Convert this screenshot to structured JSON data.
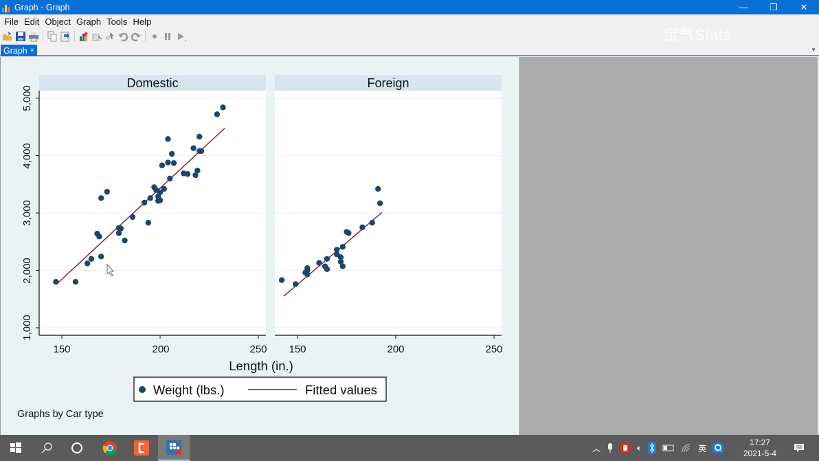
{
  "window": {
    "title": "Graph - Graph",
    "controls": {
      "minimize": "—",
      "restore": "❐",
      "close": "✕"
    }
  },
  "menu": [
    "File",
    "Edit",
    "Object",
    "Graph",
    "Tools",
    "Help"
  ],
  "toolbar": {
    "icons": [
      "open-icon",
      "save-icon",
      "print-icon",
      "copy-icon",
      "copy-to-clipboard-icon",
      "graph-editor-icon",
      "object-browser-icon",
      "pointer-icon",
      "undo-icon",
      "redo-icon",
      "record-icon",
      "pause-icon",
      "play-icon"
    ]
  },
  "watermark": "宝气Stata",
  "tabs": [
    {
      "label": "Graph",
      "close": "×"
    }
  ],
  "chart_data": {
    "type": "scatter",
    "title": "",
    "xlabel": "Length (in.)",
    "ylabel": "",
    "xlim": [
      140,
      255
    ],
    "ylim": [
      1000,
      5000
    ],
    "xticks": [
      "150",
      "200",
      "250"
    ],
    "yticks": [
      "1,000",
      "2,000",
      "3,000",
      "4,000",
      "5,000"
    ],
    "grid": true,
    "legend": {
      "position": "bottom",
      "entries": [
        "Weight (lbs.)",
        "Fitted values"
      ]
    },
    "note": "Graphs by Car type",
    "colors": {
      "dots": "#1a4670",
      "fit": "#8b1a1a",
      "strip": "#d9e5ee",
      "plot_bg": "#ffffff",
      "outer_bg": "#eaf2f3"
    },
    "panels": [
      {
        "label": "Domestic",
        "series": [
          {
            "name": "Weight (lbs.)",
            "points": [
              [
                147,
                1800
              ],
              [
                157,
                1800
              ],
              [
                163,
                2120
              ],
              [
                165,
                2200
              ],
              [
                170,
                2240
              ],
              [
                168,
                2640
              ],
              [
                169,
                2590
              ],
              [
                170,
                3260
              ],
              [
                173,
                3370
              ],
              [
                179,
                2740
              ],
              [
                180,
                2730
              ],
              [
                179,
                2650
              ],
              [
                182,
                2520
              ],
              [
                186,
                2930
              ],
              [
                194,
                2830
              ],
              [
                192,
                3180
              ],
              [
                195,
                3260
              ],
              [
                197,
                3450
              ],
              [
                198,
                3400
              ],
              [
                199,
                3290
              ],
              [
                199,
                3210
              ],
              [
                200,
                3360
              ],
              [
                200,
                3220
              ],
              [
                202,
                3420
              ],
              [
                205,
                3600
              ],
              [
                201,
                3830
              ],
              [
                204,
                3880
              ],
              [
                207,
                3870
              ],
              [
                206,
                4030
              ],
              [
                204,
                4290
              ],
              [
                212,
                3690
              ],
              [
                214,
                3680
              ],
              [
                218,
                3660
              ],
              [
                219,
                3740
              ],
              [
                217,
                4130
              ],
              [
                220,
                4080
              ],
              [
                221,
                4080
              ],
              [
                220,
                4330
              ],
              [
                229,
                4720
              ],
              [
                232,
                4840
              ]
            ]
          },
          {
            "name": "Fitted values",
            "line": [
              [
                147,
                1750
              ],
              [
                233,
                4480
              ]
            ]
          }
        ]
      },
      {
        "label": "Foreign",
        "series": [
          {
            "name": "Weight (lbs.)",
            "points": [
              [
                142,
                1830
              ],
              [
                149,
                1760
              ],
              [
                155,
                2000
              ],
              [
                155,
                2040
              ],
              [
                154,
                1960
              ],
              [
                155,
                1930
              ],
              [
                161,
                2130
              ],
              [
                164,
                2070
              ],
              [
                165,
                2020
              ],
              [
                165,
                2200
              ],
              [
                170,
                2360
              ],
              [
                170,
                2280
              ],
              [
                172,
                2230
              ],
              [
                172,
                2150
              ],
              [
                173,
                2070
              ],
              [
                173,
                2410
              ],
              [
                175,
                2670
              ],
              [
                176,
                2650
              ],
              [
                183,
                2750
              ],
              [
                188,
                2830
              ],
              [
                191,
                3420
              ],
              [
                192,
                3170
              ]
            ]
          },
          {
            "name": "Fitted values",
            "line": [
              [
                143,
                1550
              ],
              [
                193,
                3010
              ]
            ]
          }
        ]
      }
    ]
  },
  "taskbar": {
    "apps": [
      "start-icon",
      "search-icon",
      "cortana-icon",
      "chrome-icon",
      "camtasia-icon",
      "stata-icon"
    ],
    "tray_icons": [
      "show-hidden-icon",
      "microphone-icon",
      "security-icon",
      "volume-icon",
      "bluetooth-icon",
      "battery-icon",
      "wifi-icon",
      "ime-icon",
      "app-q-icon"
    ],
    "ime_label": "英",
    "time": "17:27",
    "date": "2021-5-4"
  }
}
